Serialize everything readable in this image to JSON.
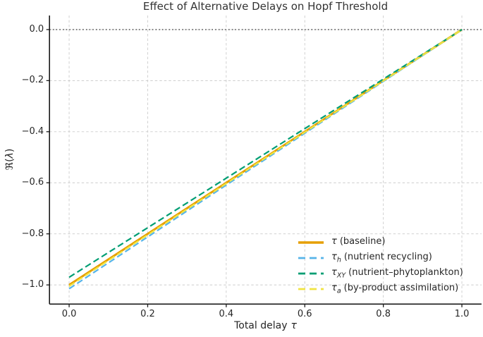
{
  "chart_data": {
    "type": "line",
    "title": "Effect of Alternative Delays on Hopf Threshold",
    "xlabel": "Total delay τ",
    "ylabel": "ℜ(λ)",
    "xlabel_parts": {
      "text": "Total delay",
      "sym": "τ"
    },
    "ylabel_parts": {
      "prefix": "ℜ(",
      "sym": "λ",
      "suffix": ")"
    },
    "xlim": [
      -0.05,
      1.05
    ],
    "ylim": [
      -1.075,
      0.055
    ],
    "x_ticks": [
      0.0,
      0.2,
      0.4,
      0.6,
      0.8,
      1.0
    ],
    "x_tick_labels": [
      "0.0",
      "0.2",
      "0.4",
      "0.6",
      "0.8",
      "1.0"
    ],
    "y_ticks": [
      0.0,
      -0.2,
      -0.4,
      -0.6,
      -0.8,
      -1.0
    ],
    "y_tick_labels": [
      "0.0",
      "−0.2",
      "−0.4",
      "−0.6",
      "−0.8",
      "−1.0"
    ],
    "grid": true,
    "grid_color": "#cccccc",
    "axis_color": "#1a1a1a",
    "reference_line": {
      "y": 0.0,
      "style": "dotted",
      "color": "#3a3a3a"
    },
    "series": [
      {
        "name": "τ (baseline)",
        "color": "#E69F00",
        "style": "solid",
        "width": 3,
        "x": [
          0.0,
          1.0
        ],
        "y": [
          -1.0,
          0.0
        ]
      },
      {
        "name": "τ_h (nutrient recycling)",
        "color": "#56B4E9",
        "style": "dashed",
        "width": 2.2,
        "x": [
          0.0,
          1.0
        ],
        "y": [
          -1.015,
          0.0
        ]
      },
      {
        "name": "τ_XY (nutrient–phytoplankton)",
        "color": "#009E73",
        "style": "dashed",
        "width": 2.2,
        "x": [
          0.0,
          1.0
        ],
        "y": [
          -0.97,
          0.0
        ]
      },
      {
        "name": "τ_a (by-product assimilation)",
        "color": "#F0E442",
        "style": "dashed",
        "width": 2.2,
        "x": [
          0.0,
          1.0
        ],
        "y": [
          -1.005,
          0.0
        ]
      }
    ],
    "legend": {
      "position": "lower right",
      "frame": false,
      "entries": [
        {
          "sym": "τ",
          "sub": "",
          "desc": "(baseline)"
        },
        {
          "sym": "τ",
          "sub": "h",
          "desc": "(nutrient recycling)"
        },
        {
          "sym": "τ",
          "sub": "XY",
          "desc": "(nutrient–phytoplankton)"
        },
        {
          "sym": "τ",
          "sub": "a",
          "desc": "(by-product assimilation)"
        }
      ]
    }
  }
}
